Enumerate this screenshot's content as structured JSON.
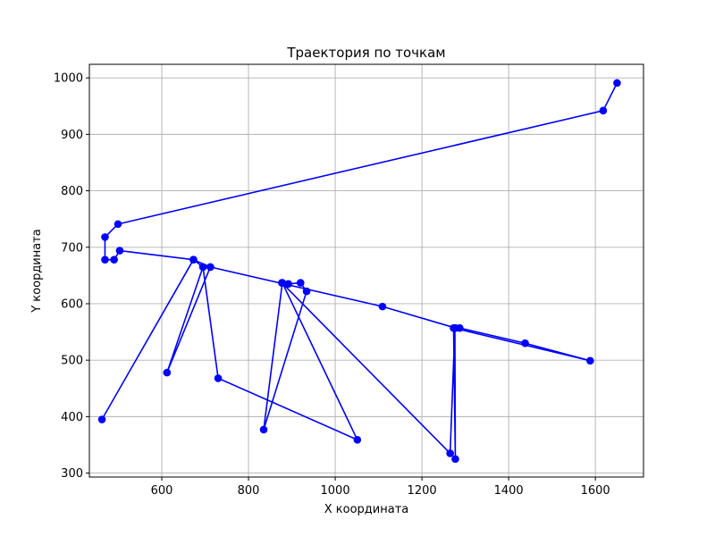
{
  "chart_data": {
    "type": "line",
    "title": "Траектория по точкам",
    "xlabel": "X координата",
    "ylabel": "Y координата",
    "xlim": [
      433,
      1711
    ],
    "ylim": [
      293,
      1024
    ],
    "xticks": [
      600,
      800,
      1000,
      1200,
      1400,
      1600
    ],
    "yticks": [
      300,
      400,
      500,
      600,
      700,
      800,
      900,
      1000
    ],
    "grid": true,
    "legend": "none",
    "series": [
      {
        "color": "#0000ff",
        "marker": "circle",
        "x": [
          1650,
          1618,
          499,
          469,
          469,
          490,
          503,
          673,
          695,
          712,
          1109,
          1277,
          1287,
          1438,
          1588,
          1273,
          1277,
          1276,
          1265,
          877,
          892,
          920,
          934,
          835,
          878,
          1051,
          730,
          695,
          612,
          712,
          673,
          462
        ],
        "y": [
          991,
          942,
          741,
          718,
          678,
          678,
          694,
          678,
          665,
          665,
          595,
          557,
          557,
          530,
          499,
          557,
          325,
          557,
          335,
          637,
          635,
          637,
          622,
          377,
          637,
          359,
          468,
          665,
          478,
          665,
          678,
          395
        ]
      }
    ]
  }
}
